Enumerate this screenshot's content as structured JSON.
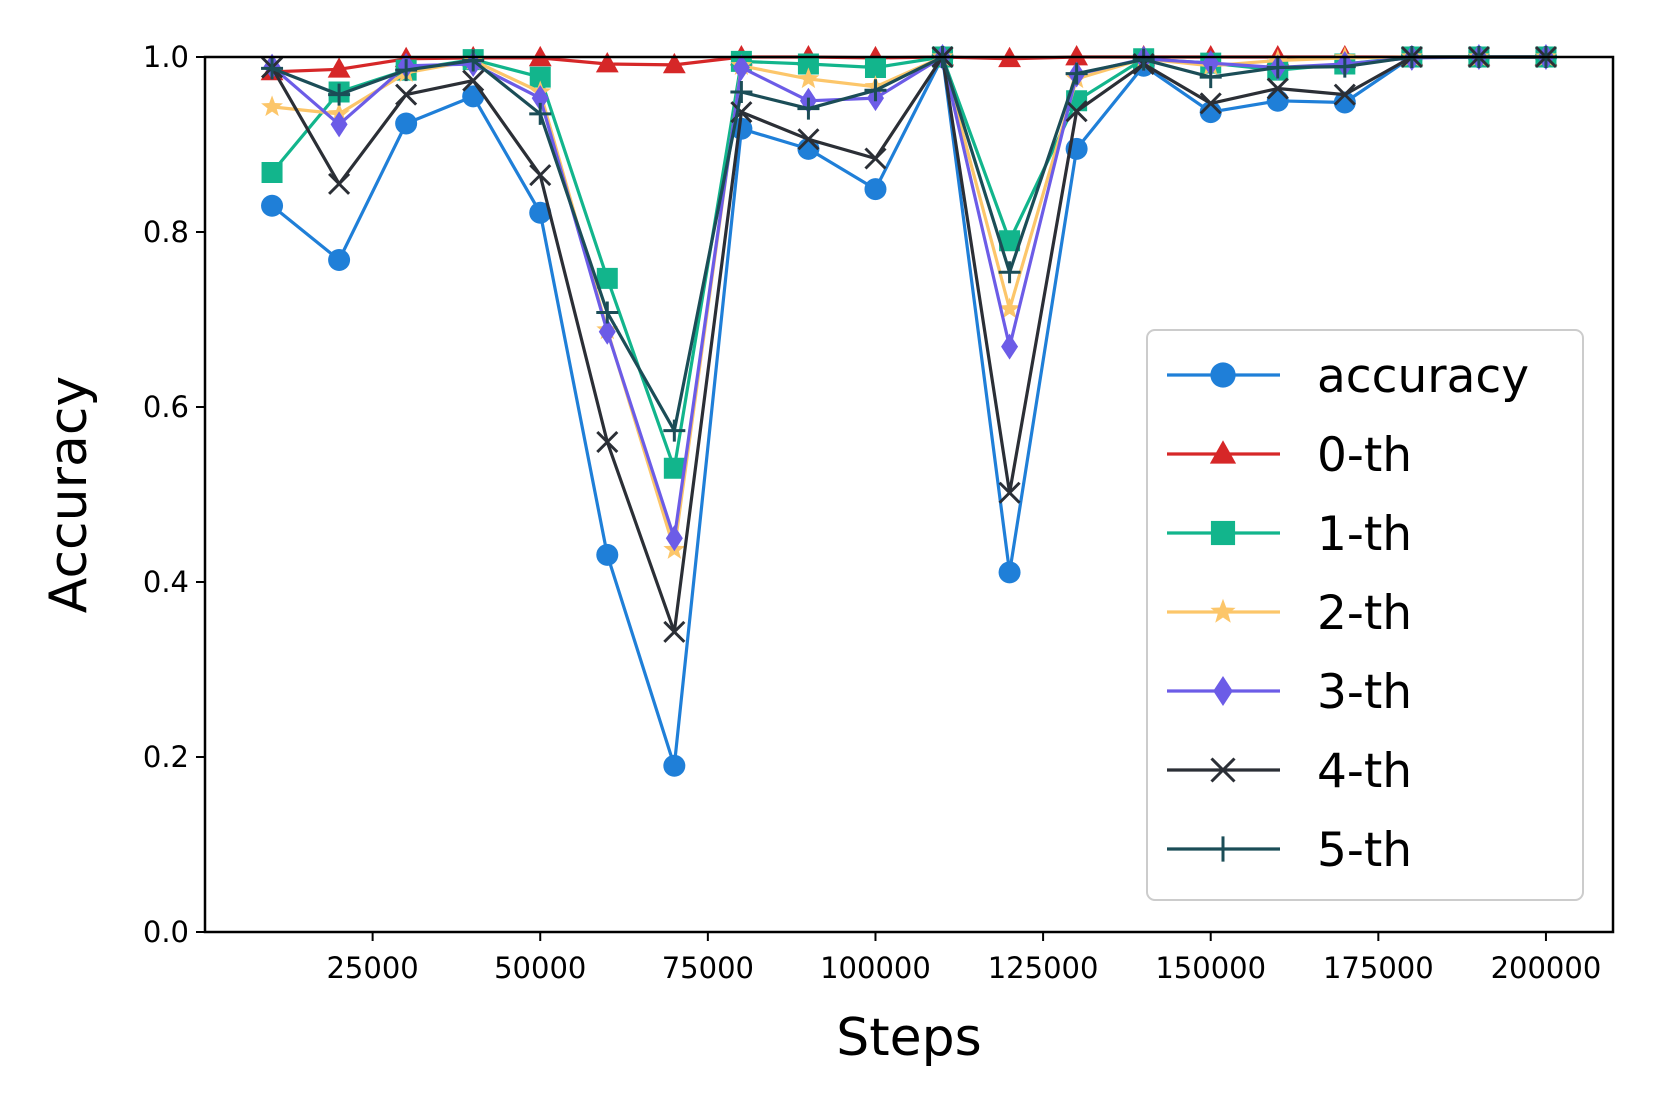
{
  "chart_data": {
    "type": "line",
    "title": "",
    "xlabel": "Steps",
    "ylabel": "Accuracy",
    "xlim": [
      0,
      210000
    ],
    "ylim": [
      0.0,
      1.0
    ],
    "grid": false,
    "legend_position": "center-right",
    "x_ticks": [
      25000,
      50000,
      75000,
      100000,
      125000,
      150000,
      175000,
      200000
    ],
    "x_tick_labels": [
      "25000",
      "50000",
      "75000",
      "100000",
      "125000",
      "150000",
      "175000",
      "200000"
    ],
    "y_ticks": [
      0.0,
      0.2,
      0.4,
      0.6,
      0.8,
      1.0
    ],
    "y_tick_labels": [
      "0.0",
      "0.2",
      "0.4",
      "0.6",
      "0.8",
      "1.0"
    ],
    "x": [
      10000,
      20000,
      30000,
      40000,
      50000,
      60000,
      70000,
      80000,
      90000,
      100000,
      110000,
      120000,
      130000,
      140000,
      150000,
      160000,
      170000,
      180000,
      190000,
      200000
    ],
    "series": [
      {
        "name": "accuracy",
        "color": "#1f7fd8",
        "marker": "circle",
        "values": [
          0.83,
          0.768,
          0.924,
          0.955,
          0.822,
          0.431,
          0.19,
          0.918,
          0.895,
          0.849,
          1.0,
          0.411,
          0.895,
          0.99,
          0.937,
          0.95,
          0.948,
          1.0,
          1.0,
          1.0
        ]
      },
      {
        "name": "0-th",
        "color": "#d62728",
        "marker": "triangle",
        "values": [
          0.983,
          0.986,
          0.998,
          0.999,
          0.999,
          0.992,
          0.991,
          1.0,
          1.0,
          0.999,
          1.0,
          0.998,
          1.0,
          1.0,
          1.0,
          1.0,
          1.0,
          1.0,
          1.0,
          1.0
        ]
      },
      {
        "name": "1-th",
        "color": "#12b58c",
        "marker": "square",
        "values": [
          0.868,
          0.96,
          0.985,
          0.997,
          0.977,
          0.747,
          0.53,
          0.995,
          0.992,
          0.988,
          1.0,
          0.79,
          0.95,
          0.998,
          0.993,
          0.985,
          0.992,
          1.0,
          1.0,
          1.0
        ]
      },
      {
        "name": "2-th",
        "color": "#fcc66a",
        "marker": "star",
        "values": [
          0.943,
          0.935,
          0.982,
          0.996,
          0.96,
          0.688,
          0.437,
          0.99,
          0.975,
          0.966,
          1.0,
          0.712,
          0.975,
          0.998,
          0.99,
          0.996,
          0.999,
          1.0,
          1.0,
          1.0
        ]
      },
      {
        "name": "3-th",
        "color": "#6c5ce7",
        "marker": "diamond",
        "values": [
          0.989,
          0.923,
          0.99,
          0.992,
          0.953,
          0.686,
          0.45,
          0.988,
          0.95,
          0.953,
          1.0,
          0.669,
          0.98,
          0.998,
          0.993,
          0.988,
          0.992,
          0.999,
          1.0,
          1.0
        ]
      },
      {
        "name": "4-th",
        "color": "#2b2f36",
        "marker": "x",
        "values": [
          0.988,
          0.855,
          0.957,
          0.973,
          0.865,
          0.56,
          0.343,
          0.937,
          0.906,
          0.884,
          1.0,
          0.502,
          0.938,
          0.992,
          0.947,
          0.964,
          0.957,
          1.0,
          1.0,
          1.0
        ]
      },
      {
        "name": "5-th",
        "color": "#1b4d57",
        "marker": "plus",
        "values": [
          0.987,
          0.957,
          0.985,
          0.996,
          0.935,
          0.708,
          0.573,
          0.96,
          0.941,
          0.962,
          1.0,
          0.754,
          0.981,
          0.997,
          0.977,
          0.988,
          0.989,
          1.0,
          1.0,
          1.0
        ]
      }
    ]
  }
}
